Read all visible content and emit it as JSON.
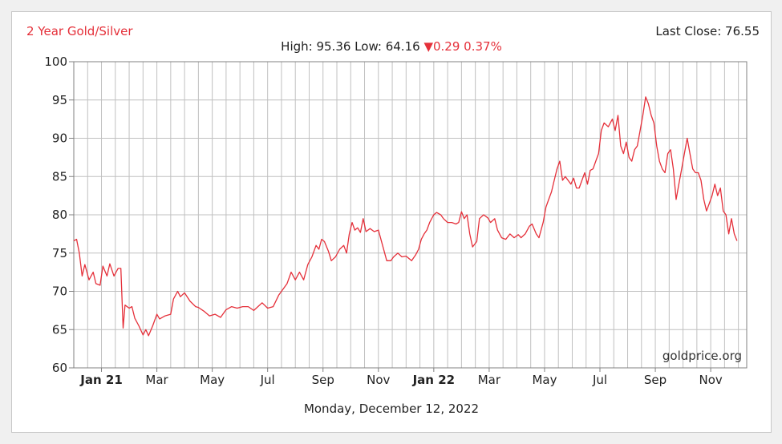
{
  "header": {
    "title": "2 Year Gold/Silver",
    "last_close": "Last Close: 76.55",
    "stats_prefix": "High: 95.36 Low: 64.16",
    "change_arrow": "▼",
    "change_text": "0.29 0.37%"
  },
  "footer": {
    "date": "Monday, December 12, 2022"
  },
  "watermark": "goldprice.org",
  "colors": {
    "series": "#e5303a",
    "grid": "#c0c0c0",
    "axis": "#808080"
  },
  "chart_data": {
    "type": "line",
    "title": "2 Year Gold/Silver",
    "xlabel": "",
    "ylabel": "",
    "ylim": [
      60,
      100
    ],
    "xlim": [
      0,
      24.3
    ],
    "yticks": [
      60,
      65,
      70,
      75,
      80,
      85,
      90,
      95,
      100
    ],
    "xticks": [
      {
        "x": 1,
        "label": "Jan 21",
        "bold": true
      },
      {
        "x": 3,
        "label": "Mar",
        "bold": false
      },
      {
        "x": 5,
        "label": "May",
        "bold": false
      },
      {
        "x": 7,
        "label": "Jul",
        "bold": false
      },
      {
        "x": 9,
        "label": "Sep",
        "bold": false
      },
      {
        "x": 11,
        "label": "Nov",
        "bold": false
      },
      {
        "x": 13,
        "label": "Jan 22",
        "bold": true
      },
      {
        "x": 15,
        "label": "Mar",
        "bold": false
      },
      {
        "x": 17,
        "label": "May",
        "bold": false
      },
      {
        "x": 19,
        "label": "Jul",
        "bold": false
      },
      {
        "x": 21,
        "label": "Sep",
        "bold": false
      },
      {
        "x": 23,
        "label": "Nov",
        "bold": false
      }
    ],
    "grid": true,
    "series": [
      {
        "name": "",
        "points": [
          [
            0.0,
            76.6
          ],
          [
            0.1,
            76.8
          ],
          [
            0.2,
            75.0
          ],
          [
            0.3,
            72.0
          ],
          [
            0.4,
            73.5
          ],
          [
            0.55,
            71.5
          ],
          [
            0.7,
            72.5
          ],
          [
            0.8,
            71.0
          ],
          [
            0.95,
            70.8
          ],
          [
            1.05,
            73.3
          ],
          [
            1.2,
            72.0
          ],
          [
            1.3,
            73.6
          ],
          [
            1.45,
            72.0
          ],
          [
            1.6,
            73.0
          ],
          [
            1.7,
            73.0
          ],
          [
            1.78,
            65.2
          ],
          [
            1.85,
            68.2
          ],
          [
            2.0,
            67.8
          ],
          [
            2.1,
            68.0
          ],
          [
            2.2,
            66.5
          ],
          [
            2.35,
            65.5
          ],
          [
            2.5,
            64.3
          ],
          [
            2.6,
            65.0
          ],
          [
            2.7,
            64.2
          ],
          [
            2.85,
            65.5
          ],
          [
            3.0,
            67.0
          ],
          [
            3.1,
            66.4
          ],
          [
            3.3,
            66.8
          ],
          [
            3.5,
            67.0
          ],
          [
            3.6,
            69.0
          ],
          [
            3.75,
            70.0
          ],
          [
            3.85,
            69.3
          ],
          [
            4.0,
            69.8
          ],
          [
            4.2,
            68.7
          ],
          [
            4.4,
            68.0
          ],
          [
            4.5,
            67.9
          ],
          [
            4.7,
            67.4
          ],
          [
            4.9,
            66.8
          ],
          [
            5.1,
            67.0
          ],
          [
            5.3,
            66.6
          ],
          [
            5.5,
            67.6
          ],
          [
            5.7,
            68.0
          ],
          [
            5.9,
            67.8
          ],
          [
            6.1,
            68.0
          ],
          [
            6.3,
            68.0
          ],
          [
            6.5,
            67.5
          ],
          [
            6.8,
            68.5
          ],
          [
            7.0,
            67.8
          ],
          [
            7.2,
            68.0
          ],
          [
            7.4,
            69.5
          ],
          [
            7.6,
            70.5
          ],
          [
            7.7,
            71.0
          ],
          [
            7.85,
            72.5
          ],
          [
            8.0,
            71.5
          ],
          [
            8.15,
            72.5
          ],
          [
            8.3,
            71.5
          ],
          [
            8.45,
            73.5
          ],
          [
            8.6,
            74.5
          ],
          [
            8.75,
            76.0
          ],
          [
            8.85,
            75.5
          ],
          [
            8.95,
            76.8
          ],
          [
            9.05,
            76.5
          ],
          [
            9.2,
            75.2
          ],
          [
            9.3,
            74.0
          ],
          [
            9.45,
            74.5
          ],
          [
            9.6,
            75.5
          ],
          [
            9.75,
            76.0
          ],
          [
            9.85,
            75.0
          ],
          [
            9.95,
            77.5
          ],
          [
            10.05,
            79.0
          ],
          [
            10.15,
            78.0
          ],
          [
            10.25,
            78.3
          ],
          [
            10.35,
            77.7
          ],
          [
            10.45,
            79.5
          ],
          [
            10.55,
            77.8
          ],
          [
            10.7,
            78.2
          ],
          [
            10.85,
            77.8
          ],
          [
            11.0,
            78.0
          ],
          [
            11.15,
            76.0
          ],
          [
            11.3,
            74.0
          ],
          [
            11.45,
            74.0
          ],
          [
            11.55,
            74.5
          ],
          [
            11.7,
            75.0
          ],
          [
            11.85,
            74.5
          ],
          [
            12.0,
            74.6
          ],
          [
            12.2,
            74.0
          ],
          [
            12.35,
            74.8
          ],
          [
            12.45,
            75.5
          ],
          [
            12.55,
            76.8
          ],
          [
            12.65,
            77.5
          ],
          [
            12.75,
            78.0
          ],
          [
            12.85,
            79.0
          ],
          [
            13.0,
            80.0
          ],
          [
            13.1,
            80.3
          ],
          [
            13.25,
            80.0
          ],
          [
            13.35,
            79.5
          ],
          [
            13.5,
            79.0
          ],
          [
            13.65,
            79.0
          ],
          [
            13.8,
            78.8
          ],
          [
            13.9,
            79.0
          ],
          [
            14.0,
            80.4
          ],
          [
            14.1,
            79.5
          ],
          [
            14.2,
            80.0
          ],
          [
            14.3,
            77.5
          ],
          [
            14.4,
            75.8
          ],
          [
            14.55,
            76.5
          ],
          [
            14.65,
            79.5
          ],
          [
            14.8,
            80.0
          ],
          [
            14.95,
            79.6
          ],
          [
            15.05,
            79.0
          ],
          [
            15.2,
            79.5
          ],
          [
            15.3,
            78.0
          ],
          [
            15.45,
            77.0
          ],
          [
            15.6,
            76.8
          ],
          [
            15.75,
            77.5
          ],
          [
            15.9,
            77.0
          ],
          [
            16.05,
            77.4
          ],
          [
            16.15,
            77.0
          ],
          [
            16.3,
            77.5
          ],
          [
            16.45,
            78.5
          ],
          [
            16.55,
            78.8
          ],
          [
            16.7,
            77.5
          ],
          [
            16.8,
            77.0
          ],
          [
            16.95,
            79.0
          ],
          [
            17.05,
            81.0
          ],
          [
            17.15,
            82.0
          ],
          [
            17.25,
            83.0
          ],
          [
            17.35,
            84.5
          ],
          [
            17.45,
            86.0
          ],
          [
            17.55,
            87.0
          ],
          [
            17.65,
            84.5
          ],
          [
            17.75,
            85.0
          ],
          [
            17.85,
            84.5
          ],
          [
            17.95,
            84.0
          ],
          [
            18.05,
            84.8
          ],
          [
            18.15,
            83.5
          ],
          [
            18.25,
            83.5
          ],
          [
            18.35,
            84.5
          ],
          [
            18.45,
            85.5
          ],
          [
            18.55,
            84.0
          ],
          [
            18.65,
            85.8
          ],
          [
            18.75,
            86.0
          ],
          [
            18.85,
            87.0
          ],
          [
            18.95,
            88.0
          ],
          [
            19.05,
            91.0
          ],
          [
            19.15,
            92.0
          ],
          [
            19.3,
            91.5
          ],
          [
            19.45,
            92.5
          ],
          [
            19.55,
            91.0
          ],
          [
            19.65,
            93.0
          ],
          [
            19.75,
            89.0
          ],
          [
            19.85,
            88.0
          ],
          [
            19.95,
            89.5
          ],
          [
            20.05,
            87.5
          ],
          [
            20.15,
            87.0
          ],
          [
            20.25,
            88.5
          ],
          [
            20.35,
            89.0
          ],
          [
            20.45,
            91.0
          ],
          [
            20.55,
            93.0
          ],
          [
            20.65,
            95.4
          ],
          [
            20.75,
            94.5
          ],
          [
            20.85,
            93.0
          ],
          [
            20.95,
            92.0
          ],
          [
            21.05,
            89.0
          ],
          [
            21.15,
            87.0
          ],
          [
            21.25,
            86.0
          ],
          [
            21.35,
            85.5
          ],
          [
            21.45,
            88.0
          ],
          [
            21.55,
            88.5
          ],
          [
            21.65,
            86.0
          ],
          [
            21.75,
            82.0
          ],
          [
            21.85,
            84.0
          ],
          [
            21.95,
            86.0
          ],
          [
            22.05,
            88.0
          ],
          [
            22.15,
            90.0
          ],
          [
            22.25,
            88.0
          ],
          [
            22.35,
            86.0
          ],
          [
            22.45,
            85.5
          ],
          [
            22.55,
            85.5
          ],
          [
            22.65,
            84.5
          ],
          [
            22.75,
            82.0
          ],
          [
            22.85,
            80.5
          ],
          [
            22.95,
            81.5
          ],
          [
            23.05,
            82.5
          ],
          [
            23.15,
            84.0
          ],
          [
            23.25,
            82.5
          ],
          [
            23.35,
            83.5
          ],
          [
            23.45,
            80.5
          ],
          [
            23.55,
            80.0
          ],
          [
            23.65,
            77.5
          ],
          [
            23.75,
            79.5
          ],
          [
            23.85,
            77.5
          ],
          [
            23.95,
            76.6
          ]
        ]
      }
    ]
  }
}
